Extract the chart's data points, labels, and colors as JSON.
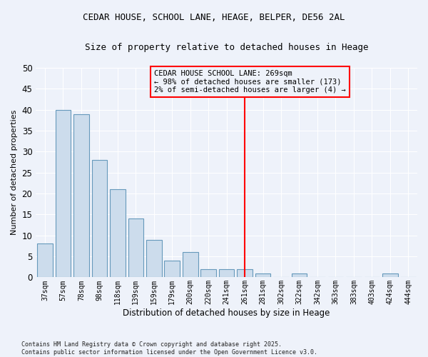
{
  "title": "CEDAR HOUSE, SCHOOL LANE, HEAGE, BELPER, DE56 2AL",
  "subtitle": "Size of property relative to detached houses in Heage",
  "xlabel": "Distribution of detached houses by size in Heage",
  "ylabel": "Number of detached properties",
  "categories": [
    "37sqm",
    "57sqm",
    "78sqm",
    "98sqm",
    "118sqm",
    "139sqm",
    "159sqm",
    "179sqm",
    "200sqm",
    "220sqm",
    "241sqm",
    "261sqm",
    "281sqm",
    "302sqm",
    "322sqm",
    "342sqm",
    "363sqm",
    "383sqm",
    "403sqm",
    "424sqm",
    "444sqm"
  ],
  "values": [
    8,
    40,
    39,
    28,
    21,
    14,
    9,
    4,
    6,
    2,
    2,
    2,
    1,
    0,
    1,
    0,
    0,
    0,
    0,
    1,
    0
  ],
  "bar_color": "#ccdcec",
  "bar_edge_color": "#6699bb",
  "background_color": "#eef2fa",
  "grid_color": "#ffffff",
  "red_line_index": 11,
  "annotation_text": "CEDAR HOUSE SCHOOL LANE: 269sqm\n← 98% of detached houses are smaller (173)\n2% of semi-detached houses are larger (4) →",
  "ylim": [
    0,
    50
  ],
  "yticks": [
    0,
    5,
    10,
    15,
    20,
    25,
    30,
    35,
    40,
    45,
    50
  ],
  "footer_line1": "Contains HM Land Registry data © Crown copyright and database right 2025.",
  "footer_line2": "Contains public sector information licensed under the Open Government Licence v3.0."
}
